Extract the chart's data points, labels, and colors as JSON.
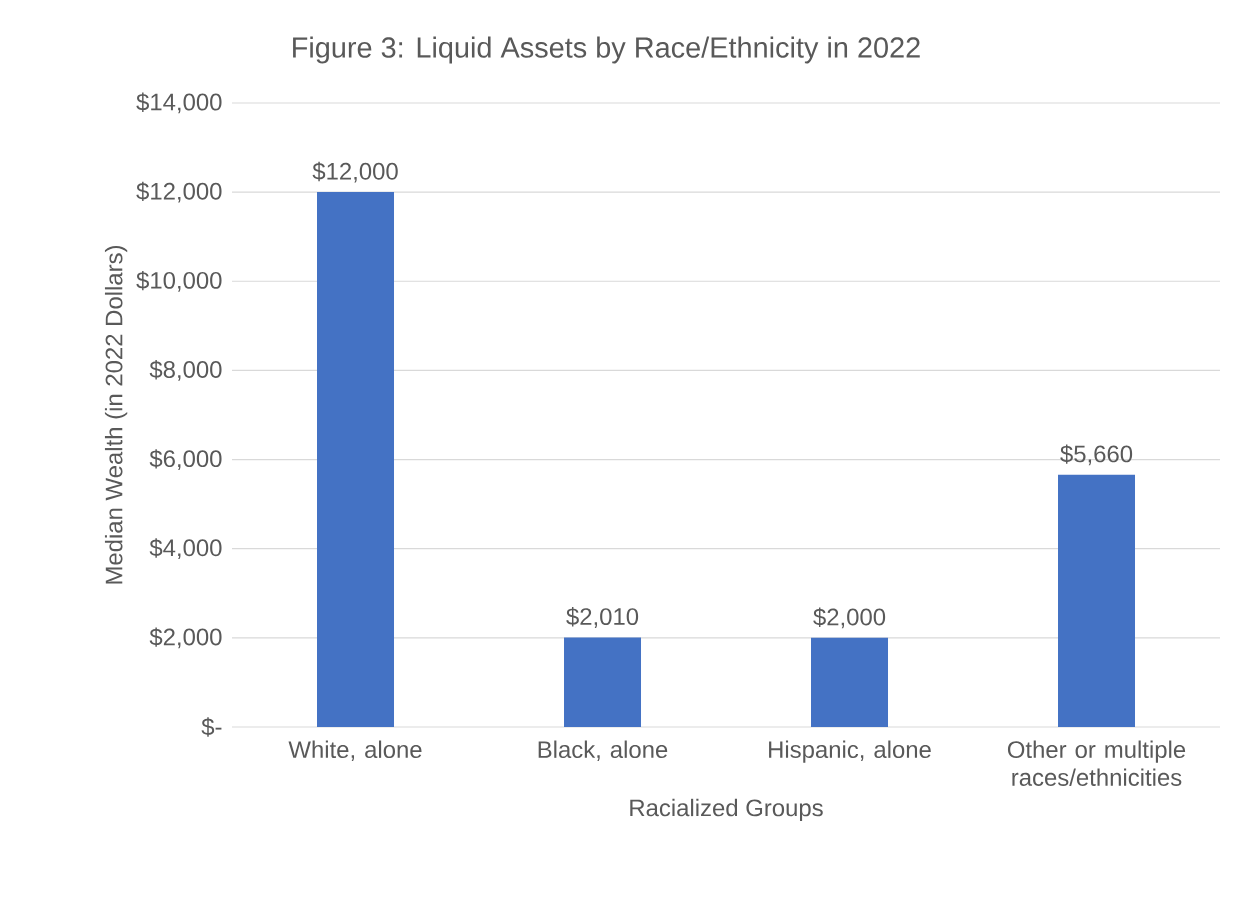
{
  "chart_data": {
    "type": "bar",
    "title": "Figure 3: Liquid Assets by Race/Ethnicity in 2022",
    "xlabel": "Racialized Groups",
    "ylabel": "Median Wealth (in 2022 Dollars)",
    "categories": [
      "White, alone",
      "Black, alone",
      "Hispanic, alone",
      "Other or multiple races/ethnicities"
    ],
    "values": [
      12000,
      2010,
      2000,
      5660
    ],
    "value_labels": [
      "$12,000",
      "$2,010",
      "$2,000",
      "$5,660"
    ],
    "color": "#4472c4",
    "ylim": [
      0,
      14000
    ],
    "yticks": [
      {
        "value": 0,
        "label": "$-"
      },
      {
        "value": 2000,
        "label": "$2,000"
      },
      {
        "value": 4000,
        "label": "$4,000"
      },
      {
        "value": 6000,
        "label": "$6,000"
      },
      {
        "value": 8000,
        "label": "$8,000"
      },
      {
        "value": 10000,
        "label": "$10,000"
      },
      {
        "value": 12000,
        "label": "$12,000"
      },
      {
        "value": 14000,
        "label": "$14,000"
      }
    ],
    "grid": "y"
  }
}
